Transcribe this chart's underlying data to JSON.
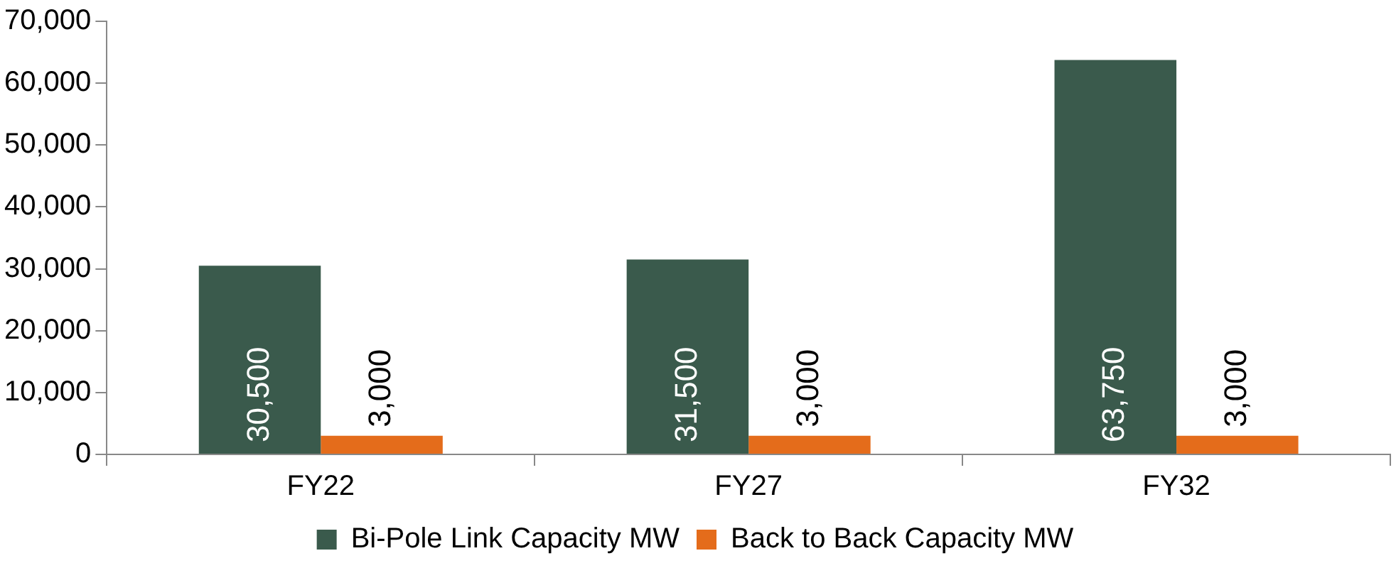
{
  "chart_data": {
    "type": "bar",
    "categories": [
      "FY22",
      "FY27",
      "FY32"
    ],
    "series": [
      {
        "name": "Bi-Pole Link Capacity MW",
        "color": "#3a5a4c",
        "values": [
          30500,
          31500,
          63750
        ],
        "value_labels": [
          "30,500",
          "31,500",
          "63,750"
        ]
      },
      {
        "name": "Back to Back Capacity MW",
        "color": "#e46c1b",
        "values": [
          3000,
          3000,
          3000
        ],
        "value_labels": [
          "3,000",
          "3,000",
          "3,000"
        ]
      }
    ],
    "ylim": [
      0,
      70000
    ],
    "yticks": [
      0,
      {
        "value": 10000,
        "label": "10,000"
      },
      {
        "value": 20000,
        "label": "20,000"
      },
      {
        "value": 30000,
        "label": "30,000"
      },
      {
        "value": 40000,
        "label": "40,000"
      },
      {
        "value": 50000,
        "label": "50,000"
      },
      {
        "value": 60000,
        "label": "60,000"
      },
      {
        "value": 70000,
        "label": "70,000"
      }
    ],
    "grid": false,
    "legend": "bottom"
  }
}
